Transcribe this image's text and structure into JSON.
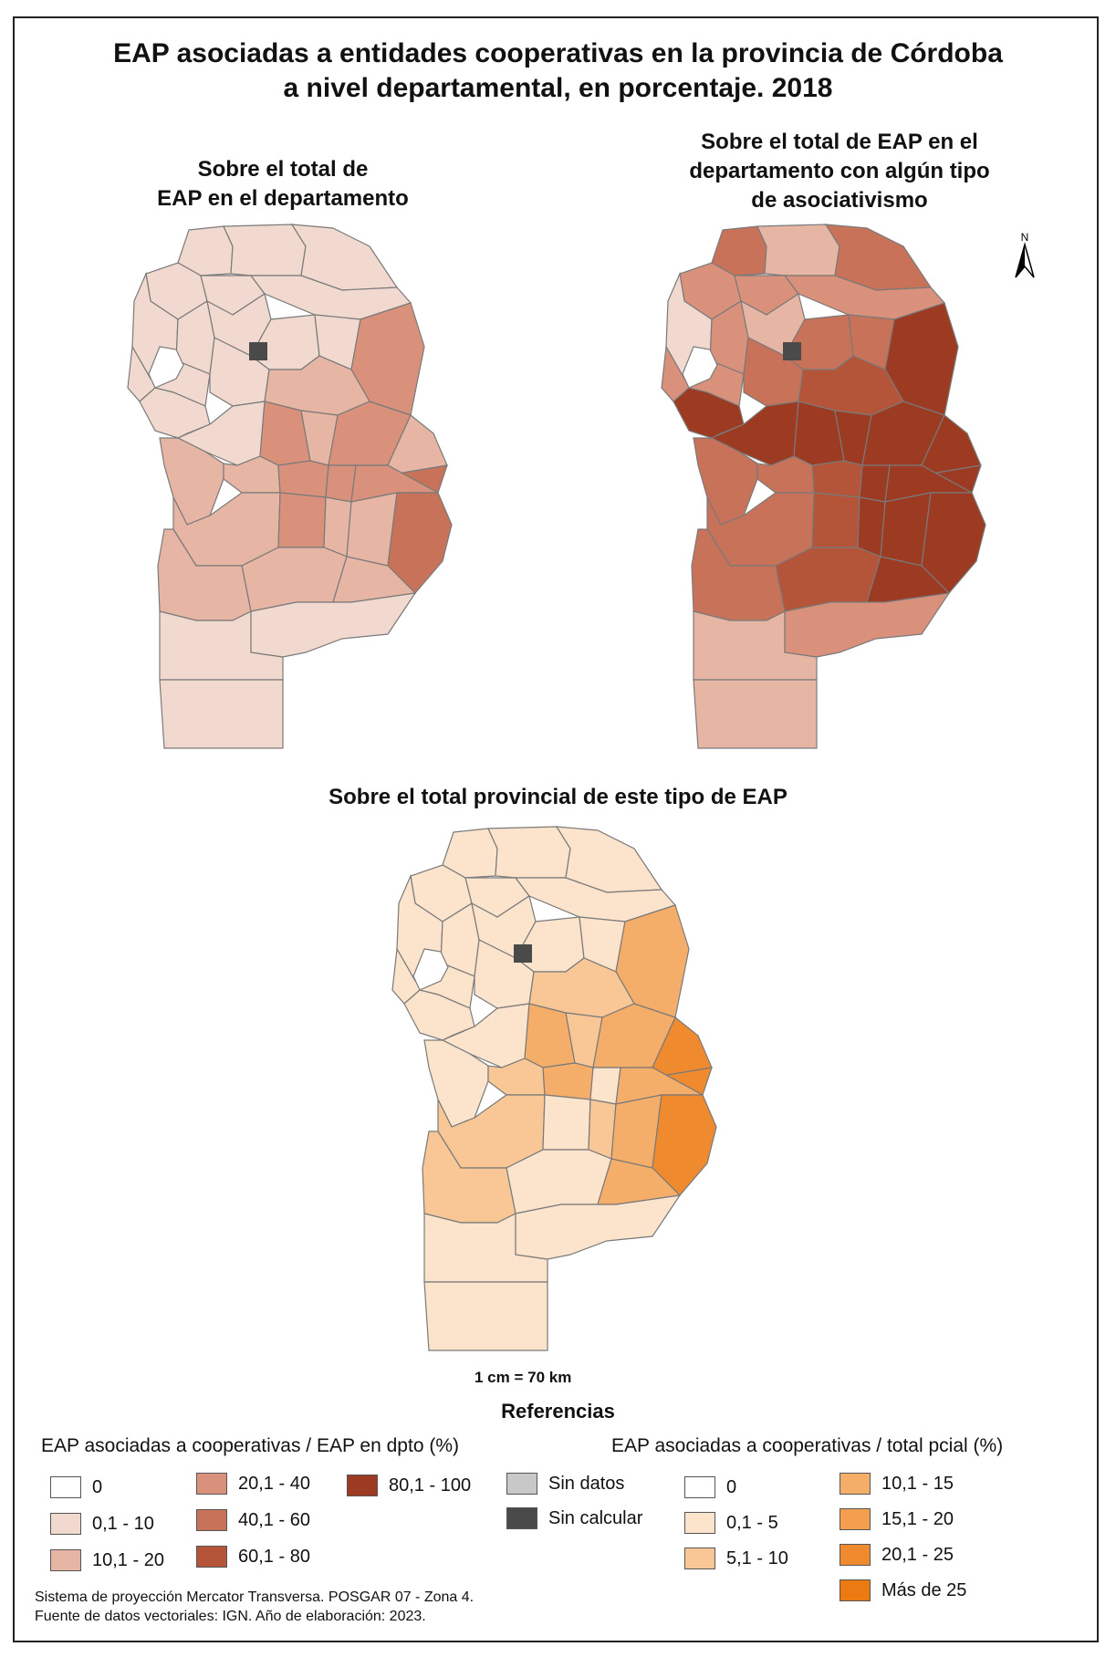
{
  "title_line1": "EAP asociadas a entidades cooperativas en la provincia de Córdoba",
  "title_line2": "a nivel departamental, en porcentaje. 2018",
  "maps": {
    "left": {
      "title_line1": "Sobre el total de",
      "title_line2": "EAP en el departamento"
    },
    "right": {
      "title_line1": "Sobre el total de EAP en el",
      "title_line2": "departamento con algún tipo",
      "title_line3": "de asociativismo"
    },
    "bottom": {
      "title": "Sobre el total provincial de este tipo de EAP"
    }
  },
  "north_label": "N",
  "scale": "1 cm = 70 km",
  "legend": {
    "title": "Referencias",
    "left_group_title": "EAP asociadas a cooperativas / EAP en dpto (%)",
    "left_items": [
      {
        "label": "0",
        "color": "#ffffff"
      },
      {
        "label": "0,1 - 10",
        "color": "#f2d9cf"
      },
      {
        "label": "10,1 - 20",
        "color": "#e6b5a4"
      },
      {
        "label": "20,1 - 40",
        "color": "#d9917b"
      },
      {
        "label": "40,1 - 60",
        "color": "#c8725a"
      },
      {
        "label": "60,1 - 80",
        "color": "#b45438"
      },
      {
        "label": "80,1 - 100",
        "color": "#9c3a22"
      },
      {
        "label": "Sin datos",
        "color": "#c8c8c8"
      },
      {
        "label": "Sin calcular",
        "color": "#4a4a4a"
      }
    ],
    "right_group_title": "EAP asociadas a cooperativas / total pcial (%)",
    "right_items": [
      {
        "label": "0",
        "color": "#ffffff"
      },
      {
        "label": "0,1 - 5",
        "color": "#fbe3cc"
      },
      {
        "label": "5,1 - 10",
        "color": "#f8c795"
      },
      {
        "label": "10,1 - 15",
        "color": "#f5ae6a"
      },
      {
        "label": "15,1 - 20",
        "color": "#f39f4f"
      },
      {
        "label": "20,1 - 25",
        "color": "#f08a2e"
      },
      {
        "label": "Más de 25",
        "color": "#ec7a12"
      }
    ]
  },
  "footer_line1": "Sistema de proyección Mercator Transversa. POSGAR 07 - Zona 4.",
  "footer_line2": "Fuente de datos vectoriales: IGN. Año de elaboración: 2023."
}
